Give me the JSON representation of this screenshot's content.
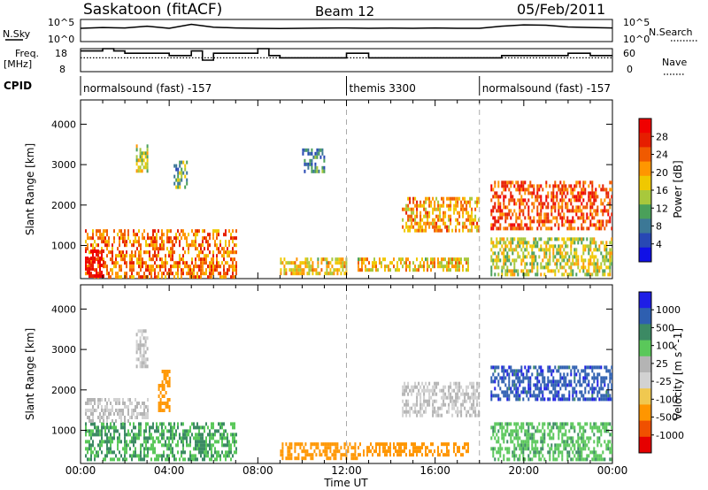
{
  "header": {
    "station": "Saskatoon (fitACF)",
    "beam": "Beam 12",
    "date": "05/Feb/2011"
  },
  "strip_labels": {
    "nsky": "N.Sky",
    "nsky_top": "10^5",
    "nsky_bottom": "10^0",
    "nsearch": "N.Search",
    "nsearch_top": "10^5",
    "nsearch_bottom": "10^0",
    "freq": "Freq.",
    "freq_unit": "[MHz]",
    "freq_top": "18",
    "freq_bottom": "8",
    "nave": "Nave",
    "nave_top": "60",
    "nave_bottom": "0",
    "cpid": "CPID"
  },
  "cpid_segments": [
    {
      "label": "normalsound (fast) -157",
      "start_h": 0
    },
    {
      "label": "themis 3300",
      "start_h": 12
    },
    {
      "label": "normalsound (fast) -157",
      "start_h": 18
    }
  ],
  "colors": {
    "power_scale": [
      "#1010e6",
      "#2848b4",
      "#3c7896",
      "#4aa05a",
      "#a8c83c",
      "#f0c800",
      "#ff9600",
      "#f05a00",
      "#e61e00",
      "#f00000"
    ],
    "velocity_scale": [
      "#1e1ee6",
      "#2e5fb0",
      "#3c8a64",
      "#5ac85a",
      "#b4b4b4",
      "#d2d2d2",
      "#f0c850",
      "#ff9600",
      "#f05000",
      "#e60000"
    ]
  },
  "chart_data": [
    {
      "type": "line",
      "title": "",
      "series": [
        {
          "name": "N.Sky",
          "x": [
            0,
            1,
            2,
            3,
            4,
            5,
            6,
            7,
            8,
            9,
            10,
            11,
            12,
            13,
            14,
            15,
            16,
            17,
            18,
            19,
            20,
            21,
            22,
            23,
            24
          ],
          "values": [
            1000,
            1500,
            1200,
            3000,
            1000,
            8000,
            1800,
            1200,
            1000,
            900,
            1000,
            1100,
            1200,
            1000,
            1100,
            1000,
            1200,
            1000,
            1000,
            3000,
            6000,
            5000,
            2000,
            1500,
            1200
          ]
        }
      ],
      "ylabel": "N.Sky",
      "y_scale": "log",
      "ylim": [
        1,
        100000
      ]
    },
    {
      "type": "line",
      "title": "",
      "series": [
        {
          "name": "Freq.",
          "x": [
            0,
            0.5,
            1,
            1.5,
            2,
            3,
            4,
            5,
            5.5,
            6,
            7,
            8,
            8.5,
            9,
            10,
            11,
            12,
            13,
            14,
            15,
            16,
            17,
            18,
            19,
            20,
            21,
            22,
            23,
            24
          ],
          "values": [
            17,
            17,
            18,
            17,
            16,
            16,
            15,
            17,
            13,
            16,
            16,
            18,
            15,
            14,
            14,
            14,
            16,
            14,
            14,
            14,
            14,
            14,
            14,
            15,
            15,
            15,
            16,
            15,
            15
          ]
        },
        {
          "name": "Nave",
          "x": [
            0,
            24
          ],
          "values": [
            36,
            36
          ]
        }
      ],
      "ylabel": "Freq. [MHz]",
      "ylim": [
        8,
        18
      ],
      "y2lim": [
        0,
        60
      ]
    },
    {
      "type": "heatmap",
      "title": "",
      "xlabel": "",
      "ylabel": "Slant Range [km]",
      "xlim": [
        0,
        24
      ],
      "ylim": [
        180,
        4600
      ],
      "x_ticks": [
        "00:00",
        "04:00",
        "08:00",
        "12:00",
        "16:00",
        "20:00",
        "00:00"
      ],
      "y_ticks": [
        1000,
        2000,
        3000,
        4000
      ],
      "colorbar_label": "Power [dB]",
      "colorbar_ticks": [
        4,
        8,
        12,
        16,
        20,
        24,
        28
      ],
      "regions": [
        {
          "x": [
            0.2,
            7.0
          ],
          "y": [
            250,
            1400
          ],
          "value": 22
        },
        {
          "x": [
            0.2,
            1.0
          ],
          "y": [
            250,
            900
          ],
          "value": 30
        },
        {
          "x": [
            2.5,
            3.0
          ],
          "y": [
            2800,
            3500
          ],
          "value": 16
        },
        {
          "x": [
            4.2,
            4.8
          ],
          "y": [
            2400,
            3100
          ],
          "value": 12
        },
        {
          "x": [
            9.0,
            12.0
          ],
          "y": [
            300,
            700
          ],
          "value": 18
        },
        {
          "x": [
            10.0,
            11.0
          ],
          "y": [
            2800,
            3400
          ],
          "value": 10
        },
        {
          "x": [
            12.5,
            17.5
          ],
          "y": [
            400,
            700
          ],
          "value": 18
        },
        {
          "x": [
            14.5,
            18.0
          ],
          "y": [
            1400,
            2200
          ],
          "value": 20
        },
        {
          "x": [
            18.5,
            24.0
          ],
          "y": [
            1400,
            2600
          ],
          "value": 24
        },
        {
          "x": [
            18.5,
            24.0
          ],
          "y": [
            300,
            1200
          ],
          "value": 16
        }
      ]
    },
    {
      "type": "heatmap",
      "title": "",
      "xlabel": "Time UT",
      "ylabel": "Slant Range [km]",
      "xlim": [
        0,
        24
      ],
      "ylim": [
        180,
        4600
      ],
      "x_ticks": [
        "00:00",
        "04:00",
        "08:00",
        "12:00",
        "16:00",
        "20:00",
        "00:00"
      ],
      "y_ticks": [
        1000,
        2000,
        3000,
        4000
      ],
      "colorbar_label": "Velocity [m s^-1]",
      "colorbar_ticks": [
        1000,
        500,
        100,
        25,
        -25,
        -100,
        -500,
        -1000
      ],
      "regions": [
        {
          "x": [
            0.2,
            7.0
          ],
          "y": [
            250,
            1200
          ],
          "value": 100
        },
        {
          "x": [
            0.2,
            3.0
          ],
          "y": [
            1200,
            1800
          ],
          "value": 0
        },
        {
          "x": [
            2.5,
            3.0
          ],
          "y": [
            2600,
            3500
          ],
          "value": 0
        },
        {
          "x": [
            3.5,
            4.0
          ],
          "y": [
            1500,
            2500
          ],
          "value": -300
        },
        {
          "x": [
            9.0,
            12.5
          ],
          "y": [
            300,
            700
          ],
          "value": -200
        },
        {
          "x": [
            12.5,
            17.5
          ],
          "y": [
            400,
            700
          ],
          "value": -200
        },
        {
          "x": [
            14.5,
            18.0
          ],
          "y": [
            1400,
            2200
          ],
          "value": 0
        },
        {
          "x": [
            18.5,
            24.0
          ],
          "y": [
            1800,
            2600
          ],
          "value": 800
        },
        {
          "x": [
            18.5,
            24.0
          ],
          "y": [
            300,
            1200
          ],
          "value": 80
        }
      ]
    }
  ]
}
